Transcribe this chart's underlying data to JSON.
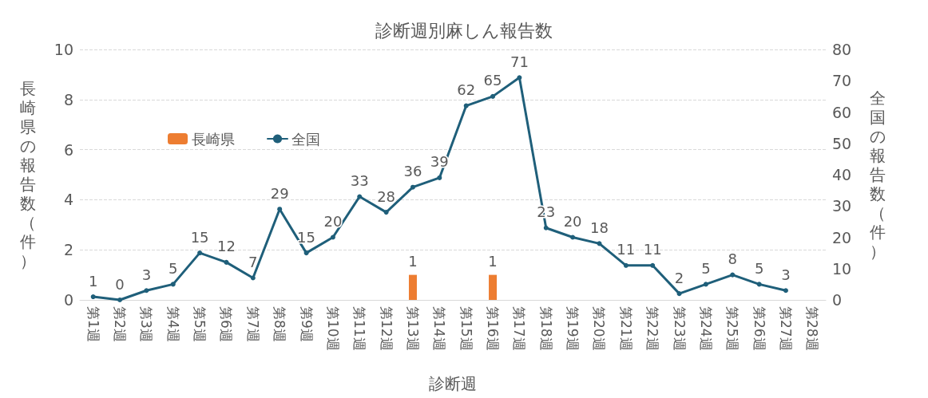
{
  "chart_data": {
    "type": "bar",
    "title": "診断週別麻しん報告数",
    "xlabel": "診断週",
    "ylabel": "長崎県の報告数（件）",
    "y2label": "全国の報告数（件）",
    "categories": [
      "第1週",
      "第2週",
      "第3週",
      "第4週",
      "第5週",
      "第6週",
      "第7週",
      "第8週",
      "第9週",
      "第10週",
      "第11週",
      "第12週",
      "第13週",
      "第14週",
      "第15週",
      "第16週",
      "第17週",
      "第18週",
      "第19週",
      "第20週",
      "第21週",
      "第22週",
      "第23週",
      "第24週",
      "第25週",
      "第26週",
      "第27週",
      "第28週"
    ],
    "series": [
      {
        "name": "長崎県",
        "color": "#ed7d31",
        "values": [
          null,
          null,
          null,
          null,
          null,
          null,
          null,
          null,
          null,
          null,
          null,
          null,
          1,
          null,
          null,
          1,
          null,
          null,
          null,
          null,
          null,
          null,
          null,
          null,
          null,
          null,
          null,
          null
        ]
      },
      {
        "name": "全国",
        "type": "line",
        "axis": "y2",
        "color": "#1f5f7a",
        "values": [
          1,
          0,
          3,
          5,
          15,
          12,
          7,
          29,
          15,
          20,
          33,
          28,
          36,
          39,
          62,
          65,
          71,
          23,
          20,
          18,
          11,
          11,
          2,
          5,
          8,
          5,
          3,
          null
        ]
      }
    ],
    "ylim": [
      0,
      10
    ],
    "yticks": [
      0,
      2,
      4,
      6,
      8,
      10
    ],
    "y2lim": [
      0,
      80
    ],
    "y2ticks": [
      0,
      10,
      20,
      30,
      40,
      50,
      60,
      70,
      80
    ],
    "grid": "y",
    "legend": "top left",
    "marker": "circle",
    "line_style": "solid",
    "data_labels": true
  }
}
